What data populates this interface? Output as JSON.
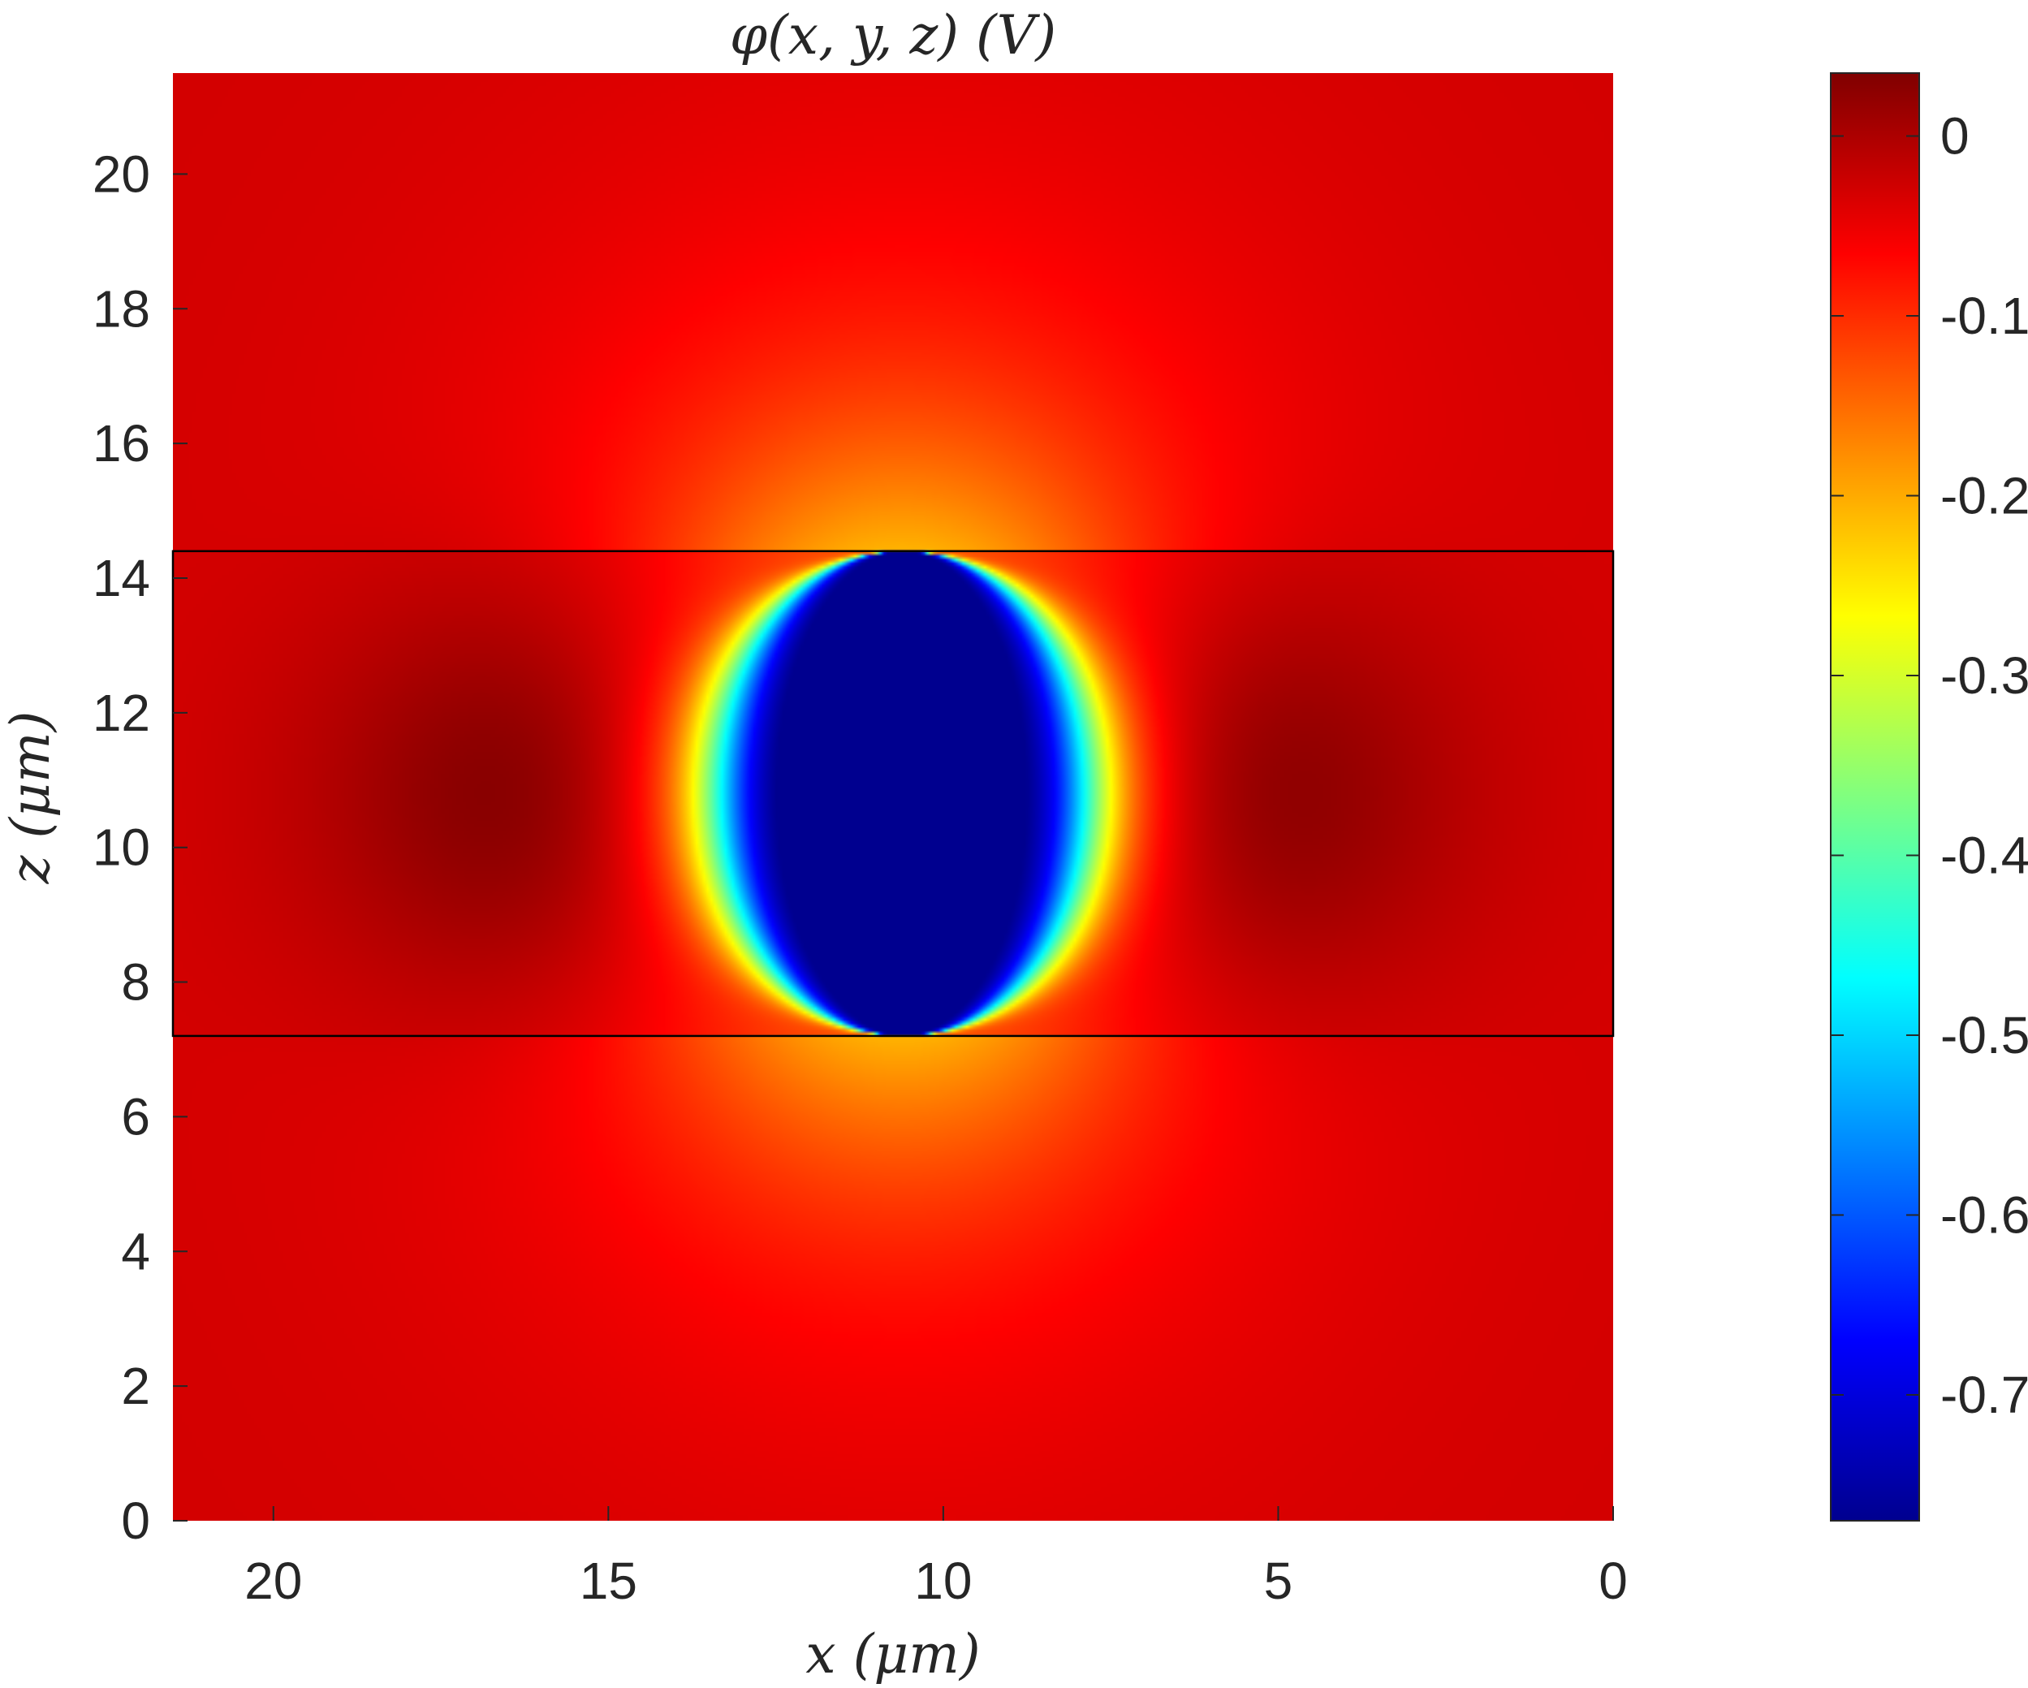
{
  "chart_data": {
    "type": "heatmap",
    "title": "φ(x, y, z) (V)",
    "xlabel": "x (μm)",
    "ylabel": "z (μm)",
    "x_axis": {
      "reversed": true,
      "lim": [
        21.5,
        0
      ],
      "ticks": [
        20,
        15,
        10,
        5,
        0
      ],
      "tick_labels": [
        "20",
        "15",
        "10",
        "5",
        "0"
      ]
    },
    "y_axis": {
      "lim": [
        0,
        21.5
      ],
      "ticks": [
        0,
        2,
        4,
        6,
        8,
        10,
        12,
        14,
        16,
        18,
        20
      ],
      "tick_labels": [
        "0",
        "2",
        "4",
        "6",
        "8",
        "10",
        "12",
        "14",
        "16",
        "18",
        "20"
      ]
    },
    "colorbar": {
      "colormap": "jet",
      "lim": [
        -0.77,
        0.035
      ],
      "ticks": [
        0,
        -0.1,
        -0.2,
        -0.3,
        -0.4,
        -0.5,
        -0.6,
        -0.7
      ],
      "tick_labels": [
        "0",
        "-0.1",
        "-0.2",
        "-0.3",
        "-0.4",
        "-0.5",
        "-0.6",
        "-0.7"
      ]
    },
    "field": {
      "background_value": -0.03,
      "central_well": {
        "x_center": 10.6,
        "z_center": 10.8,
        "x_half_width": 2.9,
        "z_half_height": 3.6,
        "min_value": -0.65
      },
      "positive_lobes": [
        {
          "x_center": 16.0,
          "z_center": 10.8,
          "max_value": 0.03
        },
        {
          "x_center": 5.6,
          "z_center": 10.8,
          "max_value": 0.03
        }
      ]
    },
    "region_box": {
      "x_range": [
        0,
        21.5
      ],
      "z_range": [
        7.2,
        14.4
      ]
    }
  }
}
